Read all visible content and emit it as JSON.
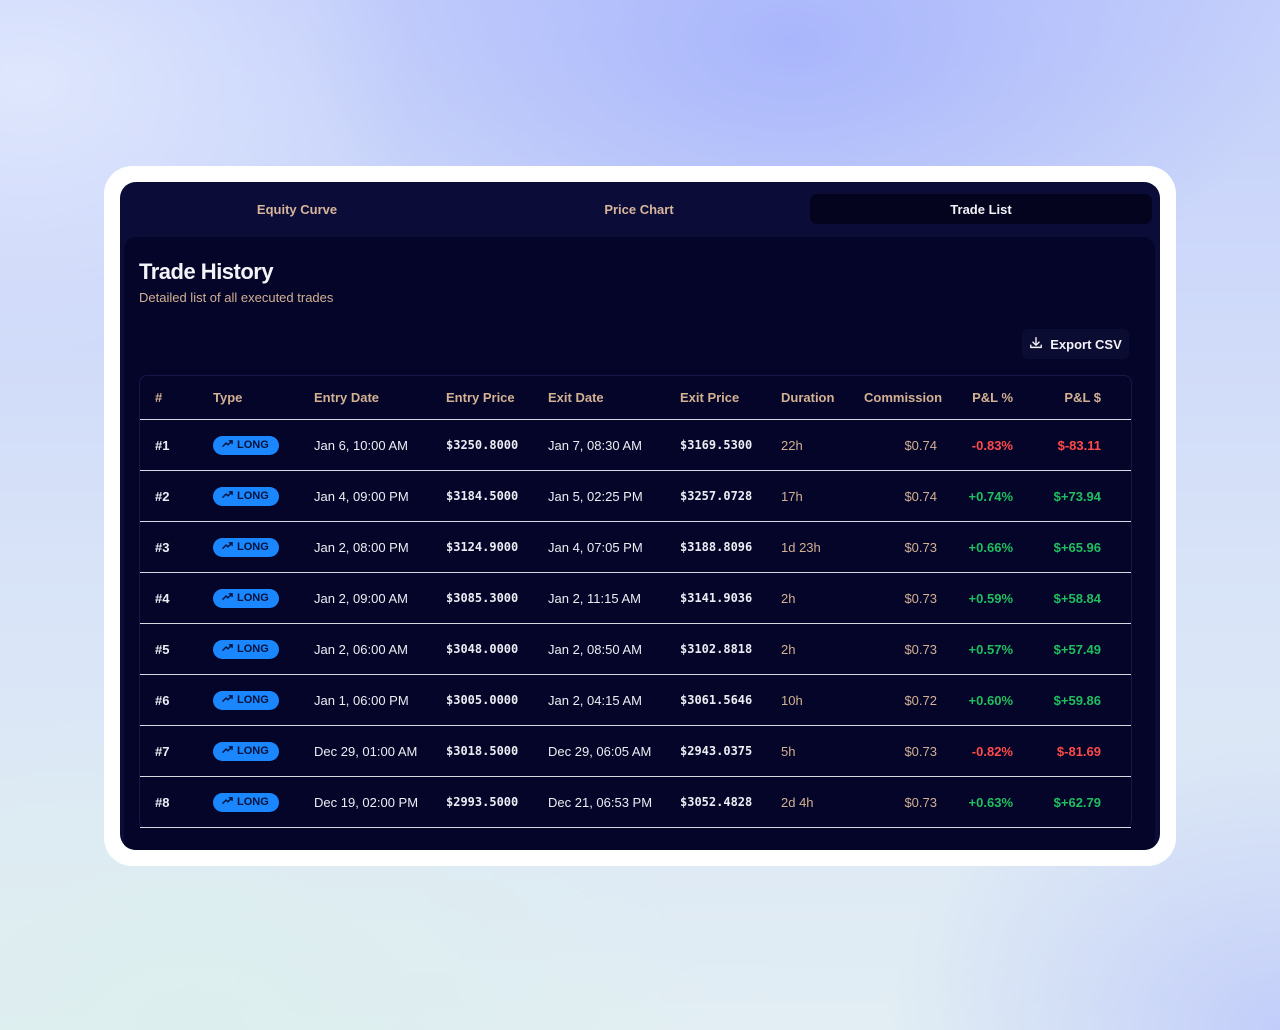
{
  "tabs": [
    {
      "label": "Equity Curve",
      "active": false
    },
    {
      "label": "Price Chart",
      "active": false
    },
    {
      "label": "Trade List",
      "active": true
    }
  ],
  "header": {
    "title": "Trade History",
    "subtitle": "Detailed list of all executed trades"
  },
  "toolbar": {
    "export_label": "Export CSV",
    "export_icon": "download-icon"
  },
  "table": {
    "columns": [
      "#",
      "Type",
      "Entry Date",
      "Entry Price",
      "Exit Date",
      "Exit Price",
      "Duration",
      "Commission",
      "P&L %",
      "P&L $"
    ],
    "type_icon": "trending-up-icon",
    "rows": [
      {
        "id": "#1",
        "type": "LONG",
        "entry_date": "Jan 6, 10:00 AM",
        "entry_price": "$3250.8000",
        "exit_date": "Jan 7, 08:30 AM",
        "exit_price": "$3169.5300",
        "duration": "22h",
        "commission": "$0.74",
        "pnl_pct": "-0.83%",
        "pnl_usd": "$-83.11",
        "outcome": "loss"
      },
      {
        "id": "#2",
        "type": "LONG",
        "entry_date": "Jan 4, 09:00 PM",
        "entry_price": "$3184.5000",
        "exit_date": "Jan 5, 02:25 PM",
        "exit_price": "$3257.0728",
        "duration": "17h",
        "commission": "$0.74",
        "pnl_pct": "+0.74%",
        "pnl_usd": "$+73.94",
        "outcome": "gain"
      },
      {
        "id": "#3",
        "type": "LONG",
        "entry_date": "Jan 2, 08:00 PM",
        "entry_price": "$3124.9000",
        "exit_date": "Jan 4, 07:05 PM",
        "exit_price": "$3188.8096",
        "duration": "1d 23h",
        "commission": "$0.73",
        "pnl_pct": "+0.66%",
        "pnl_usd": "$+65.96",
        "outcome": "gain"
      },
      {
        "id": "#4",
        "type": "LONG",
        "entry_date": "Jan 2, 09:00 AM",
        "entry_price": "$3085.3000",
        "exit_date": "Jan 2, 11:15 AM",
        "exit_price": "$3141.9036",
        "duration": "2h",
        "commission": "$0.73",
        "pnl_pct": "+0.59%",
        "pnl_usd": "$+58.84",
        "outcome": "gain"
      },
      {
        "id": "#5",
        "type": "LONG",
        "entry_date": "Jan 2, 06:00 AM",
        "entry_price": "$3048.0000",
        "exit_date": "Jan 2, 08:50 AM",
        "exit_price": "$3102.8818",
        "duration": "2h",
        "commission": "$0.73",
        "pnl_pct": "+0.57%",
        "pnl_usd": "$+57.49",
        "outcome": "gain"
      },
      {
        "id": "#6",
        "type": "LONG",
        "entry_date": "Jan 1, 06:00 PM",
        "entry_price": "$3005.0000",
        "exit_date": "Jan 2, 04:15 AM",
        "exit_price": "$3061.5646",
        "duration": "10h",
        "commission": "$0.72",
        "pnl_pct": "+0.60%",
        "pnl_usd": "$+59.86",
        "outcome": "gain"
      },
      {
        "id": "#7",
        "type": "LONG",
        "entry_date": "Dec 29, 01:00 AM",
        "entry_price": "$3018.5000",
        "exit_date": "Dec 29, 06:05 AM",
        "exit_price": "$2943.0375",
        "duration": "5h",
        "commission": "$0.73",
        "pnl_pct": "-0.82%",
        "pnl_usd": "$-81.69",
        "outcome": "loss"
      },
      {
        "id": "#8",
        "type": "LONG",
        "entry_date": "Dec 19, 02:00 PM",
        "entry_price": "$2993.5000",
        "exit_date": "Dec 21, 06:53 PM",
        "exit_price": "$3052.4828",
        "duration": "2d 4h",
        "commission": "$0.73",
        "pnl_pct": "+0.63%",
        "pnl_usd": "$+62.79",
        "outcome": "gain"
      }
    ]
  },
  "colors": {
    "gain": "#1fbf60",
    "loss": "#ff4a4a",
    "badge": "#1a86ff",
    "panel": "#050529"
  }
}
